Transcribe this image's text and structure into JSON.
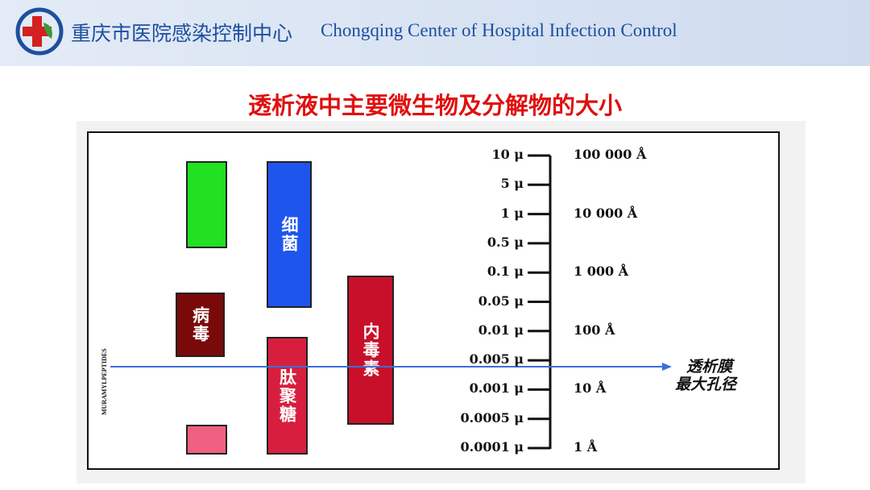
{
  "header": {
    "title": "重庆市医院感染控制中心",
    "subtitle": "Chongqing Center of Hospital Infection Control"
  },
  "title": "透析液中主要微生物及分解物的大小",
  "boxes": [
    "细菌",
    "病毒",
    "肽聚糖",
    "内毒素"
  ],
  "side_text": "MURAMYLPEPTIDES",
  "scale": {
    "micron_labels": [
      "10 μ",
      "5 μ",
      "1 μ",
      "0.5 μ",
      "0.1 μ",
      "0.05 μ",
      "0.01 μ",
      "0.005 μ",
      "0.001 μ",
      "0.0005 μ",
      "0.0001 μ"
    ],
    "angstrom_labels": [
      "100 000 Å",
      "10 000 Å",
      "1 000 Å",
      "100 Å",
      "10 Å",
      "1 Å"
    ]
  },
  "membrane_label": [
    "透析膜",
    "最大孔径"
  ]
}
